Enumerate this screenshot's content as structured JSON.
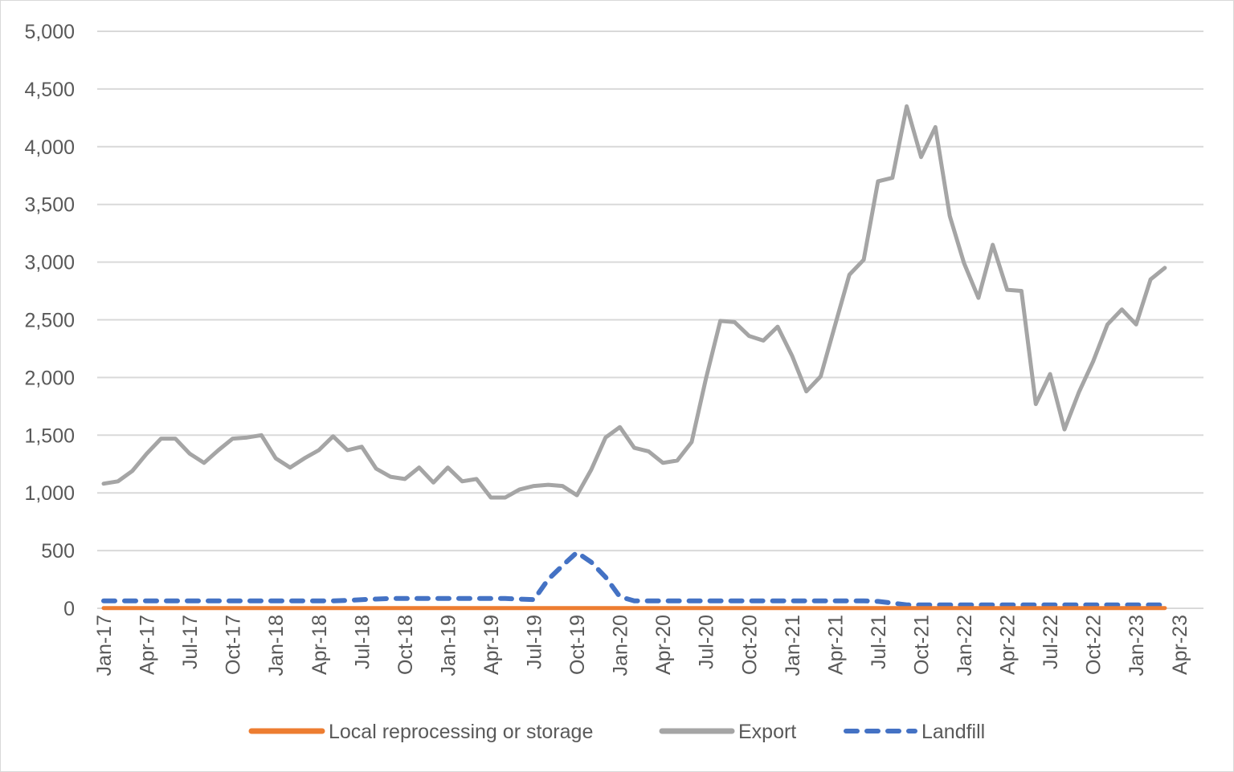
{
  "chart_data": {
    "type": "line",
    "title": "",
    "xlabel": "",
    "ylabel": "",
    "ylim": [
      0,
      5000
    ],
    "y_ticks": [
      "0",
      "500",
      "1,000",
      "1,500",
      "2,000",
      "2,500",
      "3,000",
      "3,500",
      "4,000",
      "4,500",
      "5,000"
    ],
    "grid": "horizontal",
    "legend_position": "bottom",
    "x_tick_labels": [
      "Jan-17",
      "Apr-17",
      "Jul-17",
      "Oct-17",
      "Jan-18",
      "Apr-18",
      "Jul-18",
      "Oct-18",
      "Jan-19",
      "Apr-19",
      "Jul-19",
      "Oct-19",
      "Jan-20",
      "Apr-20",
      "Jul-20",
      "Oct-20",
      "Jan-21",
      "Apr-21",
      "Jul-21",
      "Oct-21",
      "Jan-22",
      "Apr-22",
      "Jul-22",
      "Oct-22",
      "Jan-23",
      "Apr-23"
    ],
    "x": [
      "2017-01",
      "2017-02",
      "2017-03",
      "2017-04",
      "2017-05",
      "2017-06",
      "2017-07",
      "2017-08",
      "2017-09",
      "2017-10",
      "2017-11",
      "2017-12",
      "2018-01",
      "2018-02",
      "2018-03",
      "2018-04",
      "2018-05",
      "2018-06",
      "2018-07",
      "2018-08",
      "2018-09",
      "2018-10",
      "2018-11",
      "2018-12",
      "2019-01",
      "2019-02",
      "2019-03",
      "2019-04",
      "2019-05",
      "2019-06",
      "2019-07",
      "2019-08",
      "2019-09",
      "2019-10",
      "2019-11",
      "2019-12",
      "2020-01",
      "2020-02",
      "2020-03",
      "2020-04",
      "2020-05",
      "2020-06",
      "2020-07",
      "2020-08",
      "2020-09",
      "2020-10",
      "2020-11",
      "2020-12",
      "2021-01",
      "2021-02",
      "2021-03",
      "2021-04",
      "2021-05",
      "2021-06",
      "2021-07",
      "2021-08",
      "2021-09",
      "2021-10",
      "2021-11",
      "2021-12",
      "2022-01",
      "2022-02",
      "2022-03",
      "2022-04",
      "2022-05",
      "2022-06",
      "2022-07",
      "2022-08",
      "2022-09",
      "2022-10",
      "2022-11",
      "2022-12",
      "2023-01",
      "2023-02",
      "2023-03"
    ],
    "series": [
      {
        "name": "Local reprocessing or storage",
        "color": "#ed7d31",
        "dash": "solid",
        "values": [
          2,
          2,
          2,
          2,
          2,
          2,
          2,
          2,
          2,
          2,
          2,
          2,
          2,
          2,
          2,
          2,
          2,
          2,
          2,
          2,
          2,
          2,
          2,
          2,
          2,
          2,
          2,
          2,
          2,
          2,
          2,
          2,
          2,
          2,
          2,
          2,
          2,
          2,
          2,
          2,
          2,
          2,
          2,
          2,
          2,
          2,
          2,
          2,
          2,
          2,
          2,
          2,
          2,
          2,
          2,
          2,
          2,
          2,
          2,
          2,
          2,
          2,
          2,
          2,
          2,
          2,
          2,
          2,
          2,
          2,
          2,
          2,
          2,
          2,
          2
        ]
      },
      {
        "name": "Export",
        "color": "#a5a5a5",
        "dash": "solid",
        "values": [
          1080,
          1100,
          1190,
          1340,
          1470,
          1470,
          1340,
          1260,
          1370,
          1470,
          1480,
          1500,
          1300,
          1220,
          1300,
          1370,
          1490,
          1370,
          1400,
          1210,
          1140,
          1120,
          1220,
          1090,
          1220,
          1100,
          1120,
          960,
          960,
          1030,
          1060,
          1070,
          1060,
          980,
          1200,
          1480,
          1570,
          1390,
          1360,
          1260,
          1280,
          1440,
          1990,
          2490,
          2480,
          2360,
          2320,
          2440,
          2190,
          1880,
          2010,
          2450,
          2890,
          3020,
          3700,
          3730,
          4350,
          3910,
          4170,
          3400,
          2990,
          2690,
          3150,
          2760,
          2750,
          1770,
          2030,
          1550,
          1870,
          2140,
          2460,
          2590,
          2460,
          2850,
          2950
        ]
      },
      {
        "name": "Landfill",
        "color": "#4472c4",
        "dash": "dashed",
        "values": [
          65,
          65,
          65,
          65,
          65,
          65,
          65,
          65,
          65,
          65,
          65,
          65,
          65,
          65,
          65,
          65,
          65,
          68,
          75,
          80,
          85,
          85,
          85,
          85,
          85,
          85,
          85,
          85,
          85,
          80,
          75,
          250,
          370,
          485,
          400,
          270,
          100,
          65,
          65,
          65,
          65,
          65,
          65,
          65,
          65,
          65,
          65,
          65,
          65,
          65,
          65,
          65,
          65,
          65,
          60,
          45,
          30,
          30,
          30,
          30,
          30,
          30,
          30,
          30,
          30,
          30,
          30,
          30,
          30,
          30,
          30,
          30,
          30,
          30,
          30
        ]
      }
    ]
  }
}
